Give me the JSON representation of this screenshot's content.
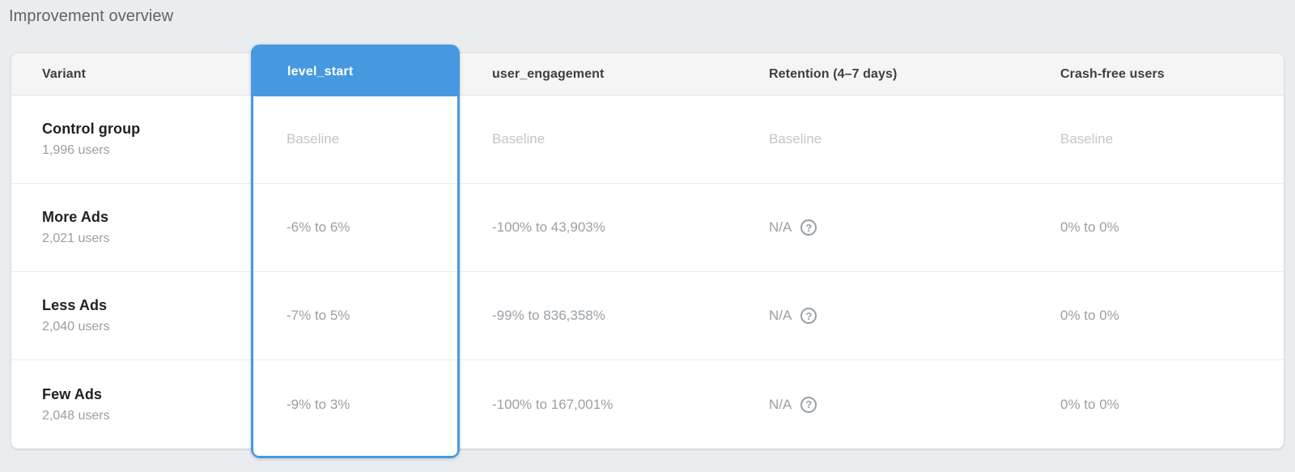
{
  "page": {
    "title": "Improvement overview"
  },
  "colors": {
    "accent_blue": "#4699e0",
    "background": "#eaedf0",
    "header_bg": "#f5f5f5",
    "baseline_text": "#c1c6cb",
    "value_text": "#9aa0a6"
  },
  "icons": {
    "help": "?"
  },
  "table": {
    "columns": {
      "variant": "Variant",
      "level_start": "level_start",
      "user_engagement": "user_engagement",
      "retention": "Retention (4–7 days)",
      "crash_free": "Crash-free users"
    },
    "selected_column": "level_start",
    "rows": [
      {
        "variant": "Control group",
        "users": "1,996 users",
        "level_start": "Baseline",
        "user_engagement": "Baseline",
        "retention": "Baseline",
        "crash_free": "Baseline"
      },
      {
        "variant": "More Ads",
        "users": "2,021 users",
        "level_start": "-6% to 6%",
        "user_engagement": "-100% to 43,903%",
        "retention": "N/A",
        "crash_free": "0% to 0%"
      },
      {
        "variant": "Less Ads",
        "users": "2,040 users",
        "level_start": "-7% to 5%",
        "user_engagement": "-99% to 836,358%",
        "retention": "N/A",
        "crash_free": "0% to 0%"
      },
      {
        "variant": "Few Ads",
        "users": "2,048 users",
        "level_start": "-9% to 3%",
        "user_engagement": "-100% to 167,001%",
        "retention": "N/A",
        "crash_free": "0% to 0%"
      }
    ]
  }
}
